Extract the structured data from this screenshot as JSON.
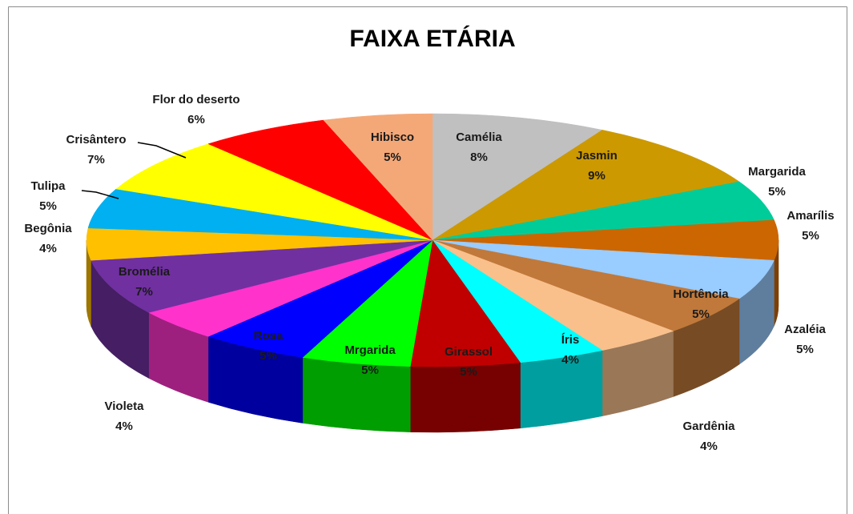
{
  "chart_data": {
    "type": "pie3d",
    "title": "FAIXA ETÁRIA",
    "categories": [
      "Camélia",
      "Jasmin",
      "Margarida",
      "Amarílis",
      "Azaléia",
      "Hortência",
      "Gardênia",
      "Íris",
      "Girassol",
      "Mrgarida",
      "Rosa",
      "Violeta",
      "Bromélia",
      "Begônia",
      "Tulipa",
      "Crisântero",
      "Flor do deserto",
      "Hibisco"
    ],
    "values": [
      8,
      9,
      5,
      5,
      5,
      5,
      4,
      4,
      5,
      5,
      5,
      4,
      7,
      4,
      5,
      7,
      6,
      5
    ],
    "value_labels": [
      "8%",
      "9%",
      "5%",
      "5%",
      "5%",
      "5%",
      "4%",
      "4%",
      "5%",
      "5%",
      "5%",
      "4%",
      "7%",
      "4%",
      "5%",
      "7%",
      "6%",
      "5%"
    ],
    "colors": [
      "#c0c0c0",
      "#cc9900",
      "#00cc99",
      "#cc6600",
      "#99ccff",
      "#c0793a",
      "#f9c08c",
      "#00ffff",
      "#c00000",
      "#00ff00",
      "#0000ff",
      "#ff33cc",
      "#7030a0",
      "#ffc000",
      "#00b0f0",
      "#ffff00",
      "#ff0000",
      "#f4a878"
    ]
  }
}
